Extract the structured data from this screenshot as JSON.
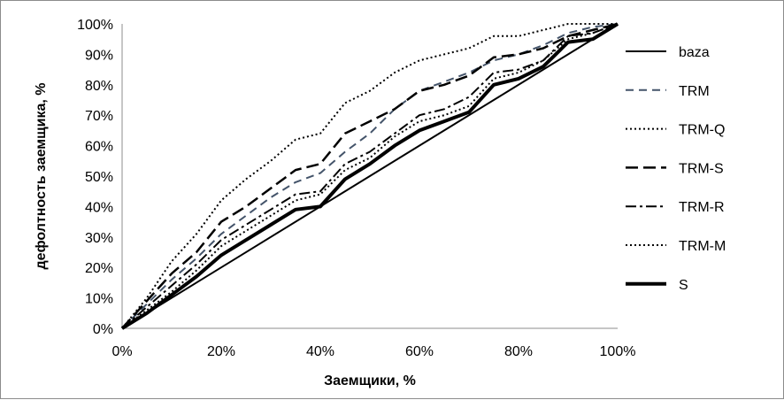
{
  "chart_data": {
    "type": "line",
    "xlabel": "Заемщики, %",
    "ylabel": "дефолтность заемщика, %",
    "xlim": [
      0,
      100
    ],
    "ylim": [
      0,
      100
    ],
    "x_ticks": [
      "0%",
      "20%",
      "40%",
      "60%",
      "80%",
      "100%"
    ],
    "y_ticks": [
      "0%",
      "10%",
      "20%",
      "30%",
      "40%",
      "50%",
      "60%",
      "70%",
      "80%",
      "90%",
      "100%"
    ],
    "grid": false,
    "legend_position": "right",
    "series": [
      {
        "name": "baza",
        "color": "#000000",
        "style": "solid",
        "x": [
          0,
          100
        ],
        "y": [
          0,
          100
        ]
      },
      {
        "name": "TRM",
        "color": "#44546a",
        "style": "dash",
        "x": [
          0,
          5,
          10,
          15,
          20,
          25,
          30,
          35,
          40,
          45,
          50,
          55,
          60,
          65,
          70,
          75,
          80,
          85,
          90,
          95,
          100
        ],
        "y": [
          0,
          8,
          16,
          23,
          31,
          37,
          43,
          48,
          51,
          58,
          64,
          72,
          78,
          81,
          84,
          88,
          90,
          93,
          97,
          99,
          100
        ]
      },
      {
        "name": "TRM-Q",
        "color": "#000000",
        "style": "dot",
        "x": [
          0,
          5,
          10,
          15,
          20,
          25,
          30,
          35,
          40,
          45,
          50,
          55,
          60,
          65,
          70,
          75,
          80,
          85,
          90,
          95,
          100
        ],
        "y": [
          0,
          10,
          22,
          31,
          42,
          49,
          55,
          62,
          64,
          74,
          78,
          84,
          88,
          90,
          92,
          96,
          96,
          98,
          100,
          100,
          100
        ]
      },
      {
        "name": "TRM-S",
        "color": "#000000",
        "style": "longdash",
        "x": [
          0,
          5,
          10,
          15,
          20,
          25,
          30,
          35,
          40,
          45,
          50,
          55,
          60,
          65,
          70,
          75,
          80,
          85,
          90,
          95,
          100
        ],
        "y": [
          0,
          9,
          18,
          25,
          35,
          40,
          46,
          52,
          54,
          64,
          68,
          72,
          78,
          80,
          83,
          89,
          90,
          92,
          96,
          98,
          100
        ]
      },
      {
        "name": "TRM-R",
        "color": "#000000",
        "style": "dashdot",
        "x": [
          0,
          5,
          10,
          15,
          20,
          25,
          30,
          35,
          40,
          45,
          50,
          55,
          60,
          65,
          70,
          75,
          80,
          85,
          90,
          95,
          100
        ],
        "y": [
          0,
          7,
          14,
          21,
          29,
          34,
          39,
          44,
          45,
          54,
          58,
          64,
          70,
          72,
          76,
          84,
          85,
          88,
          96,
          97,
          100
        ]
      },
      {
        "name": "TRM-M",
        "color": "#000000",
        "style": "dot",
        "x": [
          0,
          5,
          10,
          15,
          20,
          25,
          30,
          35,
          40,
          45,
          50,
          55,
          60,
          65,
          70,
          75,
          80,
          85,
          90,
          95,
          100
        ],
        "y": [
          0,
          6,
          12,
          19,
          27,
          32,
          37,
          42,
          44,
          52,
          56,
          63,
          68,
          70,
          73,
          82,
          84,
          88,
          95,
          97,
          100
        ]
      },
      {
        "name": "S",
        "color": "#000000",
        "style": "thick",
        "x": [
          0,
          5,
          10,
          15,
          20,
          25,
          30,
          35,
          40,
          45,
          50,
          55,
          60,
          65,
          70,
          75,
          80,
          85,
          90,
          95,
          100
        ],
        "y": [
          0,
          5,
          11,
          17,
          24,
          29,
          34,
          39,
          40,
          49,
          54,
          60,
          65,
          68,
          71,
          80,
          82,
          86,
          94,
          95,
          100
        ]
      }
    ]
  }
}
